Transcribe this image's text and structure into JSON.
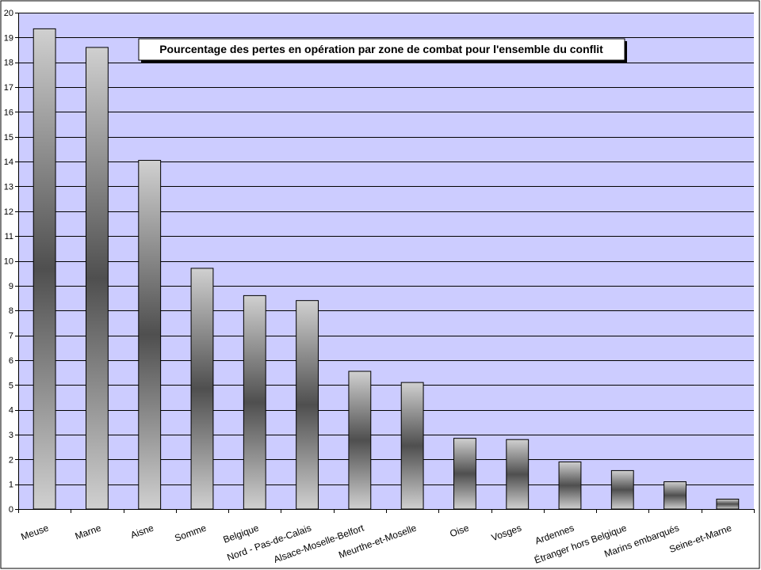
{
  "chart_data": {
    "type": "bar",
    "title": "Pourcentage des pertes en opération par zone de combat pour l'ensemble du conflit",
    "xlabel": "",
    "ylabel": "",
    "ylim": [
      0,
      20
    ],
    "yticks": [
      0,
      1,
      2,
      3,
      4,
      5,
      6,
      7,
      8,
      9,
      10,
      11,
      12,
      13,
      14,
      15,
      16,
      17,
      18,
      19,
      20
    ],
    "grid": true,
    "categories": [
      "Meuse",
      "Marne",
      "Aisne",
      "Somme",
      "Belgique",
      "Nord - Pas-de-Calais",
      "Alsace-Moselle-Belfort",
      "Meurthe-et-Moselle",
      "Oise",
      "Vosges",
      "Ardennes",
      "Étranger hors Belgique",
      "Marins embarqués",
      "Seine-et-Marne"
    ],
    "values": [
      19.35,
      18.6,
      14.05,
      9.7,
      8.6,
      8.4,
      5.55,
      5.1,
      2.85,
      2.8,
      1.9,
      1.55,
      1.1,
      0.4
    ]
  },
  "colors": {
    "plot_background": "#ccccff",
    "page_background": "#ffffff",
    "bar_light": "#d4d4d4",
    "bar_dark": "#4a4a4a",
    "grid": "#000000",
    "axis": "#000000"
  }
}
